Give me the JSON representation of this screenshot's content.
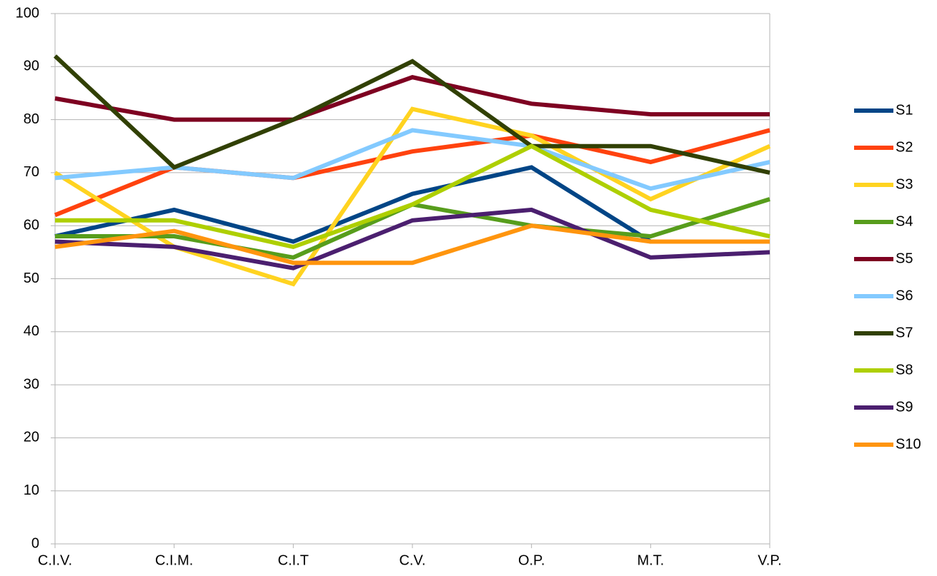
{
  "chart_data": {
    "type": "line",
    "categories": [
      "C.I.V.",
      "C.I.M.",
      "C.I.T",
      "C.V.",
      "O.P.",
      "M.T.",
      "V.P."
    ],
    "series": [
      {
        "name": "S1",
        "color": "#004586",
        "values": [
          58,
          63,
          57,
          66,
          71,
          57,
          57
        ]
      },
      {
        "name": "S2",
        "color": "#ff420e",
        "values": [
          62,
          71,
          69,
          74,
          77,
          72,
          78
        ]
      },
      {
        "name": "S3",
        "color": "#ffd320",
        "values": [
          70,
          56,
          49,
          82,
          77,
          65,
          75
        ]
      },
      {
        "name": "S4",
        "color": "#579d1c",
        "values": [
          58,
          58,
          54,
          64,
          60,
          58,
          65
        ]
      },
      {
        "name": "S5",
        "color": "#7e0021",
        "values": [
          84,
          80,
          80,
          88,
          83,
          81,
          81
        ]
      },
      {
        "name": "S6",
        "color": "#83caff",
        "values": [
          69,
          71,
          69,
          78,
          75,
          67,
          72
        ]
      },
      {
        "name": "S7",
        "color": "#314004",
        "values": [
          92,
          71,
          80,
          91,
          75,
          75,
          70
        ]
      },
      {
        "name": "S8",
        "color": "#aecf00",
        "values": [
          61,
          61,
          56,
          64,
          75,
          63,
          58
        ]
      },
      {
        "name": "S9",
        "color": "#4b1f6f",
        "values": [
          57,
          56,
          52,
          61,
          63,
          54,
          55
        ]
      },
      {
        "name": "S10",
        "color": "#ff950e",
        "values": [
          56,
          59,
          53,
          53,
          60,
          57,
          57
        ]
      }
    ],
    "ylim": [
      0,
      100
    ],
    "yticks": [
      0,
      10,
      20,
      30,
      40,
      50,
      60,
      70,
      80,
      90,
      100
    ],
    "grid": true,
    "legend": "right"
  }
}
